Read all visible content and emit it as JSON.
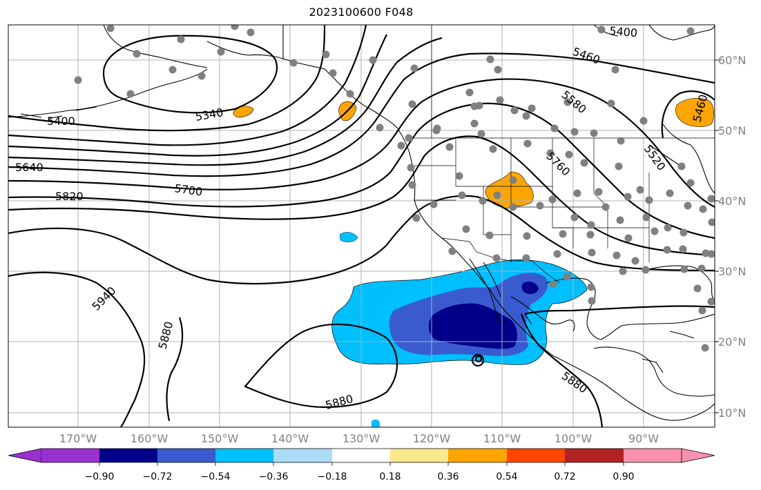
{
  "title": "2023100600 F048",
  "lat_labels": [
    "60°N",
    "50°N",
    "40°N",
    "30°N",
    "20°N",
    "10°N"
  ],
  "lon_labels": [
    "170°W",
    "160°W",
    "150°W",
    "140°W",
    "130°W",
    "120°W",
    "110°W",
    "100°W",
    "90°W"
  ],
  "contour_labels": [
    "5400",
    "5340",
    "5640",
    "5820",
    "5700",
    "5940",
    "5880",
    "5880",
    "5880",
    "5460",
    "5400",
    "5580",
    "5760",
    "5460",
    "5520"
  ],
  "colorbar": {
    "ticks": [
      "−0.90",
      "−0.72",
      "−0.54",
      "−0.36",
      "−0.18",
      "0.18",
      "0.36",
      "0.54",
      "0.72",
      "0.90"
    ],
    "colors": [
      "#9b30d0",
      "#00008b",
      "#3a5bd0",
      "#00bfff",
      "#aadcfa",
      "#ffffff",
      "#fbe88a",
      "#ffa500",
      "#ff4500",
      "#b22222",
      "#f890b0"
    ]
  },
  "fill_colors": {
    "deep_blue": "#00008b",
    "mid_blue": "#3a5bd0",
    "light_blue": "#00bfff",
    "orange": "#ffa500",
    "station_gray": "#808080"
  }
}
